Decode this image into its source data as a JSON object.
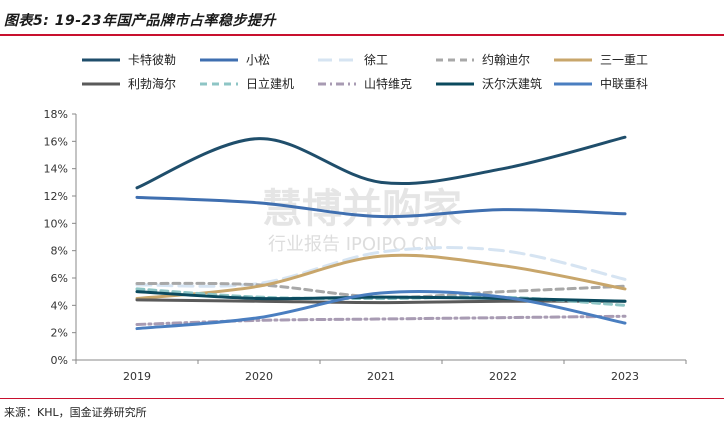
{
  "title": "图表5: 19-23年国产品牌市占率稳步提升",
  "source": "来源：KHL，国金证券研究所",
  "watermark": {
    "line1": "慧博并购家",
    "line2": "行业报告 IPOIPO.CN"
  },
  "chart_data": {
    "type": "line",
    "title": "图表5: 19-23年国产品牌市占率稳步提升",
    "xlabel": "",
    "ylabel": "",
    "categories": [
      "2019",
      "2020",
      "2021",
      "2022",
      "2023"
    ],
    "ylim": [
      0,
      18
    ],
    "yticks": [
      "0%",
      "2%",
      "4%",
      "6%",
      "8%",
      "10%",
      "12%",
      "14%",
      "16%",
      "18%"
    ],
    "grid": false,
    "legend_position": "top",
    "series": [
      {
        "name": "卡特彼勒",
        "values": [
          12.6,
          16.2,
          13.0,
          14.0,
          16.3
        ],
        "color": "#1f4e6b",
        "dash": "solid",
        "width": 3
      },
      {
        "name": "小松",
        "values": [
          11.9,
          11.5,
          10.5,
          11.0,
          10.7
        ],
        "color": "#3f6fb0",
        "dash": "solid",
        "width": 3
      },
      {
        "name": "徐工",
        "values": [
          5.5,
          5.6,
          7.9,
          8.0,
          5.9
        ],
        "color": "#d6e4f2",
        "dash": "long",
        "width": 3
      },
      {
        "name": "约翰迪尔",
        "values": [
          5.6,
          5.5,
          4.6,
          5.0,
          5.4
        ],
        "color": "#a8a8a8",
        "dash": "dash",
        "width": 3
      },
      {
        "name": "三一重工",
        "values": [
          4.5,
          5.4,
          7.6,
          6.9,
          5.2
        ],
        "color": "#c8a66b",
        "dash": "solid",
        "width": 3
      },
      {
        "name": "利勃海尔",
        "values": [
          4.4,
          4.3,
          4.2,
          4.3,
          4.3
        ],
        "color": "#5a5a5a",
        "dash": "solid",
        "width": 3
      },
      {
        "name": "日立建机",
        "values": [
          5.2,
          4.6,
          4.5,
          4.6,
          4.0
        ],
        "color": "#8ec5c5",
        "dash": "dash",
        "width": 3
      },
      {
        "name": "山特维克",
        "values": [
          2.6,
          2.9,
          3.0,
          3.1,
          3.2
        ],
        "color": "#a89bb3",
        "dash": "dashdot",
        "width": 3
      },
      {
        "name": "沃尔沃建筑",
        "values": [
          5.0,
          4.5,
          4.6,
          4.5,
          4.3
        ],
        "color": "#0b4a5e",
        "dash": "solid",
        "width": 3
      },
      {
        "name": "中联重科",
        "values": [
          2.3,
          3.1,
          4.9,
          4.6,
          2.7
        ],
        "color": "#4a7ec0",
        "dash": "solid",
        "width": 3
      }
    ]
  }
}
